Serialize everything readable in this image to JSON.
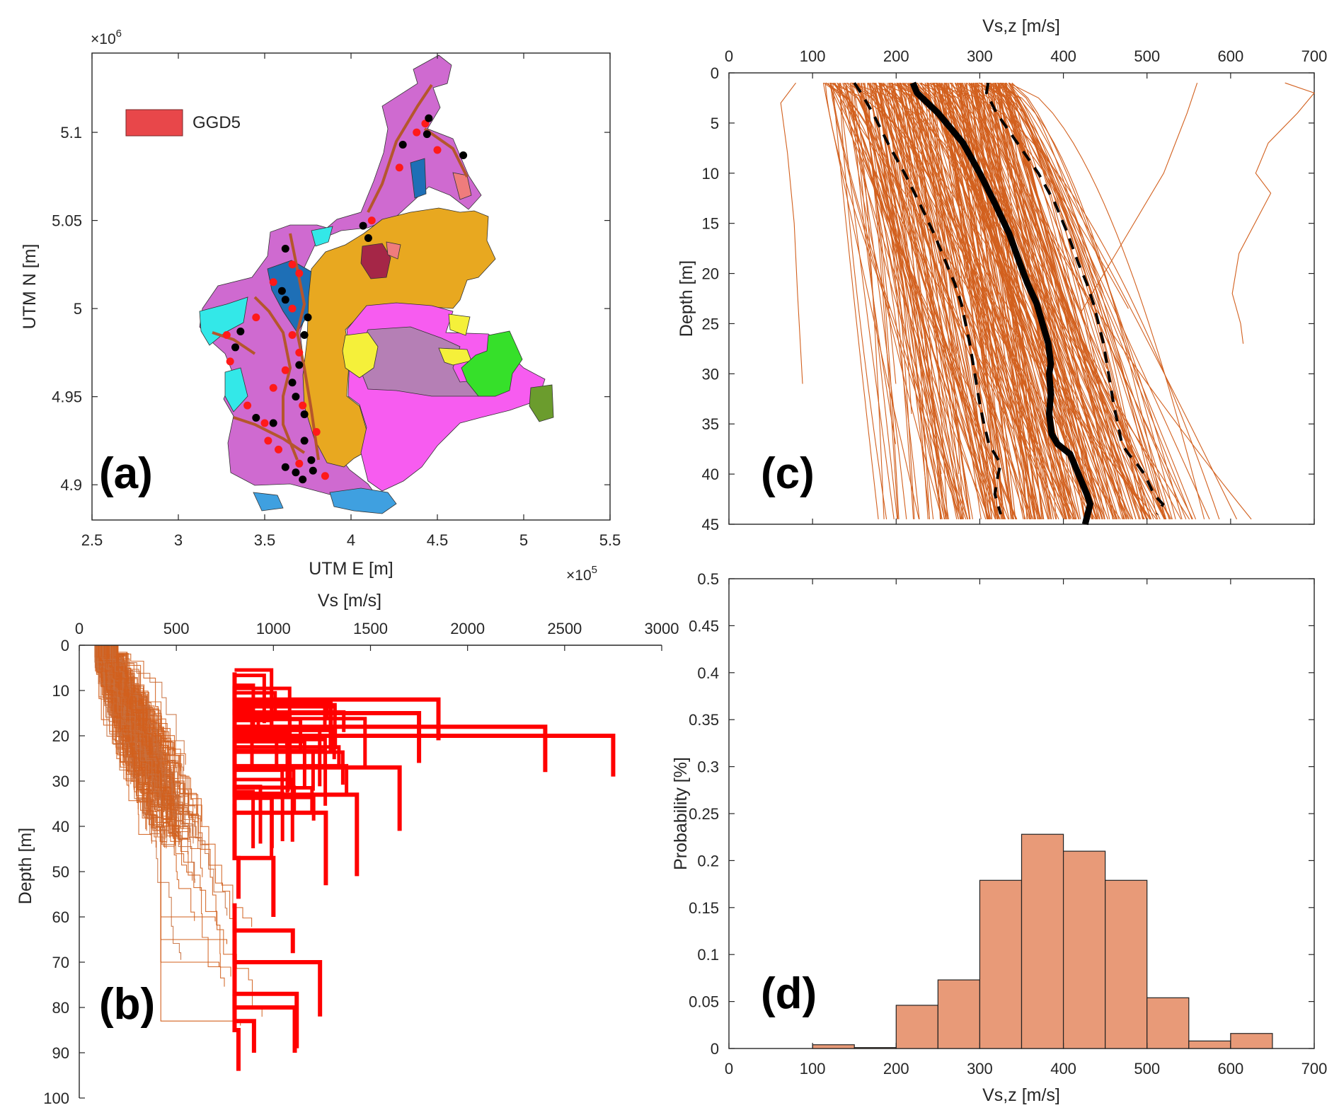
{
  "colors": {
    "profile": "#d2601e",
    "profile_strong": "#ff0000",
    "median": "#000000",
    "bar_fill": "#e89a78",
    "bar_edge": "#222222",
    "legend_swatch": "#e8474a",
    "axis": "#262626"
  },
  "chart_data": [
    {
      "id": "a",
      "type": "map",
      "panel_label": "(a)",
      "xlabel": "UTM E [m]",
      "ylabel": "UTM N [m]",
      "x_multiplier": "×10",
      "x_exponent": "5",
      "y_multiplier": "×10",
      "y_exponent": "6",
      "xlim": [
        2.5,
        5.5
      ],
      "ylim": [
        4.88,
        5.145
      ],
      "xticks": [
        "2.5",
        "3",
        "3.5",
        "4",
        "4.5",
        "5",
        "5.5"
      ],
      "yticks": [
        "4.9",
        "4.95",
        "5",
        "5.05",
        "5.1"
      ],
      "legend": [
        {
          "label": "GGD5",
          "color": "#e8474a"
        }
      ],
      "regions": [
        {
          "name": "orange unit",
          "color": "#e8a820"
        },
        {
          "name": "violet unit",
          "color": "#cf6ad0"
        },
        {
          "name": "magenta unit",
          "color": "#f75cf0"
        },
        {
          "name": "mauve unit",
          "color": "#b57fb5"
        },
        {
          "name": "green unit",
          "color": "#36e02a"
        },
        {
          "name": "yellow unit",
          "color": "#f5f03a"
        },
        {
          "name": "blue unit",
          "color": "#1e6fb6"
        },
        {
          "name": "cyan unit",
          "color": "#33e8e8"
        },
        {
          "name": "sky unit",
          "color": "#3fa0e0"
        },
        {
          "name": "olive unit",
          "color": "#6b9c2d"
        },
        {
          "name": "maroon unit",
          "color": "#a52647"
        },
        {
          "name": "pink unit",
          "color": "#ef7c7c"
        }
      ],
      "sites_black": [
        [
          4.45,
          5.108
        ],
        [
          4.44,
          5.099
        ],
        [
          4.65,
          5.087
        ],
        [
          4.3,
          5.093
        ],
        [
          4.07,
          5.047
        ],
        [
          4.1,
          5.04
        ],
        [
          3.62,
          5.034
        ],
        [
          3.6,
          5.01
        ],
        [
          3.62,
          5.005
        ],
        [
          3.75,
          4.995
        ],
        [
          3.36,
          4.987
        ],
        [
          3.33,
          4.978
        ],
        [
          3.73,
          4.985
        ],
        [
          3.7,
          4.968
        ],
        [
          3.66,
          4.958
        ],
        [
          3.68,
          4.95
        ],
        [
          3.73,
          4.94
        ],
        [
          3.45,
          4.938
        ],
        [
          3.55,
          4.935
        ],
        [
          3.73,
          4.925
        ],
        [
          3.77,
          4.914
        ],
        [
          3.78,
          4.908
        ],
        [
          3.68,
          4.907
        ],
        [
          3.72,
          4.903
        ],
        [
          3.62,
          4.91
        ]
      ],
      "sites_red": [
        [
          4.43,
          5.105
        ],
        [
          4.38,
          5.1
        ],
        [
          4.5,
          5.09
        ],
        [
          4.28,
          5.08
        ],
        [
          4.12,
          5.05
        ],
        [
          3.66,
          5.025
        ],
        [
          3.7,
          5.02
        ],
        [
          3.55,
          5.015
        ],
        [
          3.66,
          5.0
        ],
        [
          3.45,
          4.995
        ],
        [
          3.28,
          4.985
        ],
        [
          3.7,
          4.975
        ],
        [
          3.62,
          4.965
        ],
        [
          3.55,
          4.955
        ],
        [
          3.72,
          4.945
        ],
        [
          3.5,
          4.935
        ],
        [
          3.8,
          4.93
        ],
        [
          3.58,
          4.92
        ],
        [
          3.7,
          4.912
        ],
        [
          3.85,
          4.905
        ],
        [
          3.52,
          4.925
        ],
        [
          3.4,
          4.945
        ],
        [
          3.66,
          4.985
        ],
        [
          3.3,
          4.97
        ]
      ]
    },
    {
      "id": "b",
      "type": "line",
      "panel_label": "(b)",
      "title": "Vs [m/s]",
      "xlabel": "Vs [m/s]",
      "ylabel": "Depth [m]",
      "xlim": [
        0,
        3000
      ],
      "ylim": [
        0,
        100
      ],
      "xticks": [
        "0",
        "500",
        "1000",
        "1500",
        "2000",
        "2500",
        "3000"
      ],
      "yticks": [
        "0",
        "10",
        "20",
        "30",
        "40",
        "50",
        "60",
        "70",
        "80",
        "90",
        "100"
      ],
      "series": [
        {
          "name": "profiles Vs < 800",
          "style": "thin orange step lines",
          "count_approx": 300
        },
        {
          "name": "profiles with Vs > 800",
          "style": "thick red step lines",
          "bottom_segments": [
            {
              "vs": 2750,
              "depth": [
                20,
                29
              ]
            },
            {
              "vs": 2400,
              "depth": [
                18,
                28
              ]
            },
            {
              "vs": 1850,
              "depth": [
                12,
                21
              ]
            },
            {
              "vs": 1750,
              "depth": [
                15,
                26
              ]
            },
            {
              "vs": 1650,
              "depth": [
                27,
                41
              ]
            },
            {
              "vs": 1430,
              "depth": [
                33,
                51
              ]
            },
            {
              "vs": 1270,
              "depth": [
                37,
                53
              ]
            },
            {
              "vs": 1240,
              "depth": [
                70,
                82
              ]
            },
            {
              "vs": 1120,
              "depth": [
                77,
                89
              ]
            },
            {
              "vs": 1100,
              "depth": [
                63,
                68
              ]
            },
            {
              "vs": 1000,
              "depth": [
                47,
                60
              ]
            },
            {
              "vs": 1110,
              "depth": [
                80,
                90
              ]
            },
            {
              "vs": 900,
              "depth": [
                83,
                90
              ]
            },
            {
              "vs": 820,
              "depth": [
                85,
                94
              ]
            },
            {
              "vs": 820,
              "depth": [
                47,
                56
              ]
            }
          ]
        }
      ]
    },
    {
      "id": "c",
      "type": "line",
      "panel_label": "(c)",
      "title": "Vs,z [m/s]",
      "xlabel": "Vs,z [m/s]",
      "ylabel": "Depth [m]",
      "xlim": [
        0,
        700
      ],
      "ylim": [
        0,
        45
      ],
      "xticks": [
        "0",
        "100",
        "200",
        "300",
        "400",
        "500",
        "600",
        "700"
      ],
      "yticks": [
        "0",
        "5",
        "10",
        "15",
        "20",
        "25",
        "30",
        "35",
        "40",
        "45"
      ],
      "series": [
        {
          "name": "median",
          "style": "thick black solid",
          "x": [
            220,
            225,
            250,
            280,
            300,
            318,
            335,
            348,
            357,
            368,
            375,
            382,
            385,
            383,
            385,
            383,
            386,
            393,
            408,
            418,
            428,
            432,
            426
          ],
          "y": [
            1,
            2,
            4,
            7,
            10,
            13,
            16,
            19,
            21,
            23,
            25,
            27,
            29,
            30,
            32,
            34,
            36,
            37,
            38,
            40,
            42,
            43,
            45
          ]
        },
        {
          "name": "16th percentile",
          "style": "black dashed",
          "x": [
            150,
            158,
            172,
            190,
            210,
            228,
            245,
            260,
            270,
            278,
            283,
            288,
            292,
            296,
            300,
            305,
            311,
            318,
            325,
            322,
            320,
            318,
            325
          ],
          "y": [
            1,
            2,
            4,
            7,
            10,
            13,
            16,
            19,
            21,
            23,
            25,
            27,
            29,
            31,
            33,
            35,
            37,
            38,
            39,
            40,
            41,
            42,
            44
          ]
        },
        {
          "name": "84th percentile",
          "style": "black dashed",
          "x": [
            310,
            308,
            320,
            345,
            370,
            390,
            405,
            418,
            428,
            436,
            442,
            448,
            452,
            456,
            460,
            465,
            470,
            478,
            488,
            497,
            508,
            519,
            512
          ],
          "y": [
            1,
            2,
            4,
            7,
            10,
            13,
            16,
            19,
            21,
            23,
            25,
            27,
            29,
            31,
            33,
            35,
            37,
            38,
            39,
            40,
            42,
            43,
            44
          ]
        },
        {
          "name": "profiles",
          "style": "thin orange lines",
          "count_approx": 300
        }
      ]
    },
    {
      "id": "d",
      "type": "bar",
      "panel_label": "(d)",
      "xlabel": "Vs,z [m/s]",
      "ylabel": "Probability [%]",
      "xlim": [
        0,
        700
      ],
      "ylim": [
        0,
        0.5
      ],
      "xticks": [
        "0",
        "100",
        "200",
        "300",
        "400",
        "500",
        "600",
        "700"
      ],
      "yticks": [
        "0",
        "0.05",
        "0.1",
        "0.15",
        "0.2",
        "0.25",
        "0.3",
        "0.35",
        "0.4",
        "0.45",
        "0.5"
      ],
      "bin_edges": [
        100,
        150,
        200,
        250,
        300,
        350,
        400,
        450,
        500,
        550,
        600,
        650
      ],
      "values": [
        0.004,
        0.001,
        0.046,
        0.073,
        0.179,
        0.228,
        0.21,
        0.179,
        0.054,
        0.008,
        0.016
      ]
    }
  ]
}
